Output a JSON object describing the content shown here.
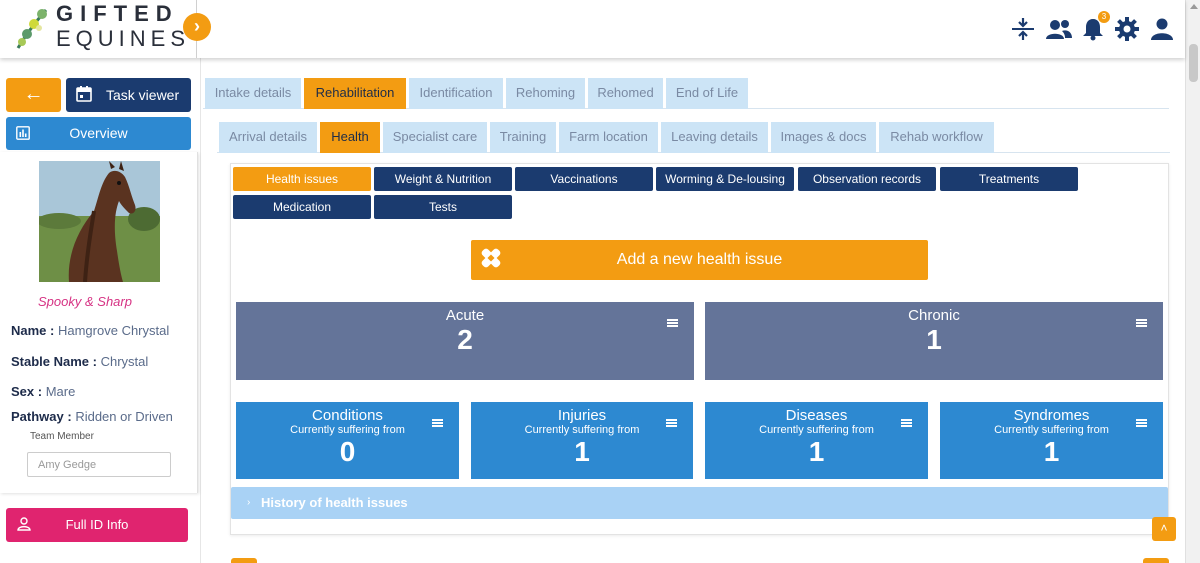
{
  "brand": {
    "line1": "GIFTED",
    "line2": "EQUINES"
  },
  "header": {
    "notification_count": "3"
  },
  "sidebar": {
    "back_label": "←",
    "task_viewer_label": "Task viewer",
    "overview_label": "Overview",
    "horse_nickname": "Spooky & Sharp",
    "fields": [
      {
        "label": "Name :",
        "value": "Hamgrove Chrystal"
      },
      {
        "label": "Stable Name :",
        "value": "Chrystal"
      },
      {
        "label": "Sex :",
        "value": "Mare"
      },
      {
        "label": "Pathway :",
        "value": "Ridden or Driven"
      }
    ],
    "team_member_label": "Team Member",
    "team_member_value": "Amy Gedge",
    "full_id_label": "Full ID Info"
  },
  "main_tabs": [
    "Intake details",
    "Rehabilitation",
    "Identification",
    "Rehoming",
    "Rehomed",
    "End of Life"
  ],
  "main_tab_active": "Rehabilitation",
  "sub_tabs": [
    "Arrival details",
    "Health",
    "Specialist care",
    "Training",
    "Farm location",
    "Leaving details",
    "Images & docs",
    "Rehab workflow"
  ],
  "sub_tab_active": "Health",
  "categories": [
    "Health issues",
    "Weight & Nutrition",
    "Vaccinations",
    "Worming & De-lousing",
    "Observation records",
    "Treatments",
    "Medication",
    "Tests"
  ],
  "category_active": "Health issues",
  "add_button_label": "Add a new health issue",
  "summary": [
    {
      "title": "Acute",
      "value": "2"
    },
    {
      "title": "Chronic",
      "value": "1"
    }
  ],
  "breakdown": [
    {
      "title": "Conditions",
      "subtitle": "Currently suffering from",
      "value": "0"
    },
    {
      "title": "Injuries",
      "subtitle": "Currently suffering from",
      "value": "1"
    },
    {
      "title": "Diseases",
      "subtitle": "Currently suffering from",
      "value": "1"
    },
    {
      "title": "Syndromes",
      "subtitle": "Currently suffering from",
      "value": "1"
    }
  ],
  "history_label": "History of health issues",
  "colors": {
    "accent": "#f39c12",
    "navy": "#1b3b6f",
    "blue": "#2d89d1",
    "slate": "#647499",
    "pink": "#e0246f",
    "tab_inactive": "#cce4f6"
  },
  "icons": [
    "compress-icon",
    "users-icon",
    "bell-icon",
    "gear-icon",
    "user-icon",
    "calendar-icon",
    "bar-chart-icon",
    "person-icon",
    "bandage-icon",
    "hamburger-menu-icon",
    "chevron-right-icon",
    "arrow-up-icon"
  ]
}
